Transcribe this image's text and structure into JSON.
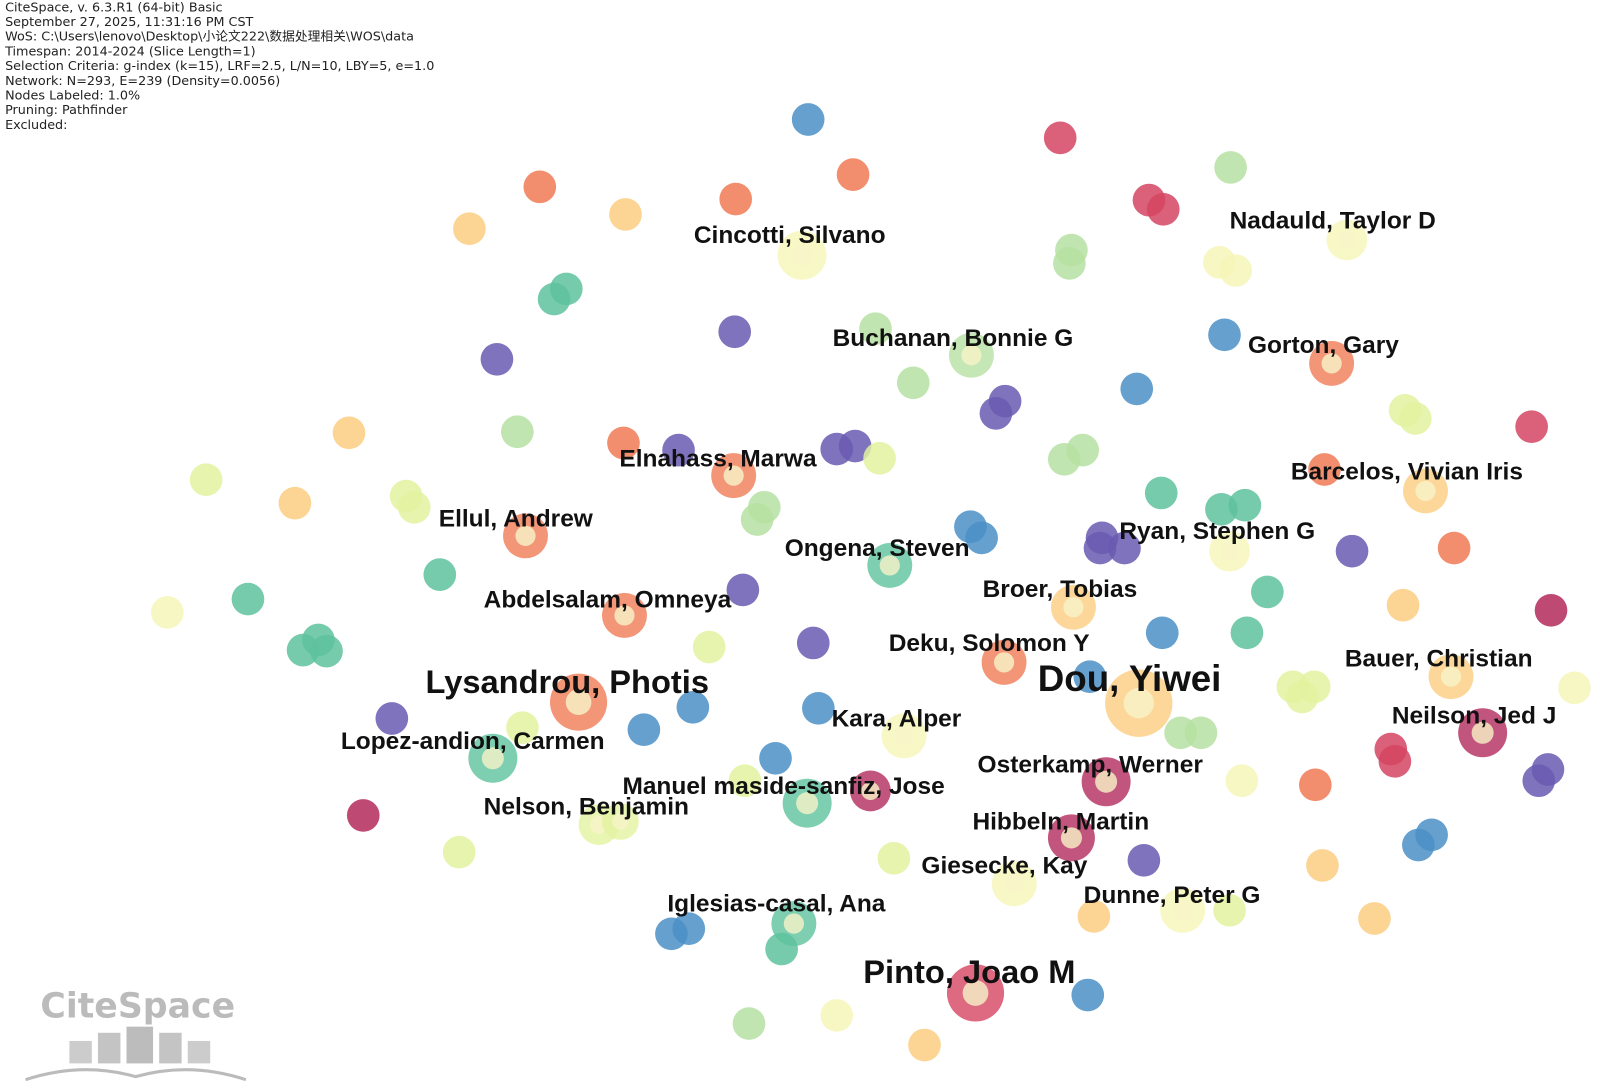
{
  "header": {
    "lines": [
      "CiteSpace, v. 6.3.R1 (64-bit) Basic",
      "September 27, 2025, 11:31:16 PM CST",
      "WoS: C:\\Users\\lenovo\\Desktop\\小论文222\\数据处理相关\\WOS\\data",
      "Timespan: 2014-2024 (Slice Length=1)",
      "Selection Criteria: g-index (k=15), LRF=2.5, L/N=10, LBY=5, e=1.0",
      "Network: N=293, E=239 (Density=0.0056)",
      "Nodes Labeled: 1.0%",
      "Pruning: Pathfinder",
      "Excluded:"
    ]
  },
  "nodes": [
    {
      "label": "Cincotti, Silvano"
    },
    {
      "label": "Nadauld, Taylor D"
    },
    {
      "label": "Buchanan, Bonnie G"
    },
    {
      "label": "Gorton, Gary"
    },
    {
      "label": "Elnahass, Marwa"
    },
    {
      "label": "Barcelos, Vivian Iris"
    },
    {
      "label": "Ellul, Andrew"
    },
    {
      "label": "Ryan, Stephen G"
    },
    {
      "label": "Ongena, Steven"
    },
    {
      "label": "Broer, Tobias"
    },
    {
      "label": "Abdelsalam, Omneya"
    },
    {
      "label": "Deku, Solomon Y"
    },
    {
      "label": "Bauer, Christian"
    },
    {
      "label": "Lysandrou, Photis"
    },
    {
      "label": "Dou, Yiwei"
    },
    {
      "label": "Kara, Alper"
    },
    {
      "label": "Neilson, Jed J"
    },
    {
      "label": "Lopez-andion, Carmen"
    },
    {
      "label": "Osterkamp, Werner"
    },
    {
      "label": "Manuel maside-sanfiz, Jose"
    },
    {
      "label": "Nelson, Benjamin"
    },
    {
      "label": "Hibbeln, Martin"
    },
    {
      "label": "Giesecke, Kay"
    },
    {
      "label": "Dunne, Peter G"
    },
    {
      "label": "Iglesias-casal, Ana"
    },
    {
      "label": "Pinto, Joao M"
    }
  ],
  "watermark": "CiteSpace"
}
